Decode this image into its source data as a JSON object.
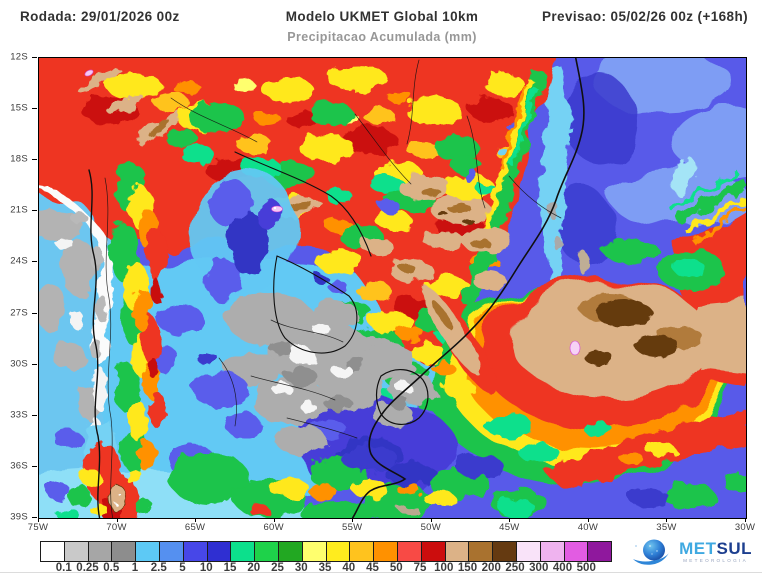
{
  "header": {
    "run_label": "Rodada: 29/01/2026 00z",
    "model_title": "Modelo UKMET Global 10km",
    "product_subtitle": "Precipitacao Acumulada (mm)",
    "forecast_label": "Previsao: 05/02/26 00z (+168h)"
  },
  "map_axes": {
    "lat_labels": [
      "12S",
      "15S",
      "18S",
      "21S",
      "24S",
      "27S",
      "30S",
      "33S",
      "36S",
      "39S"
    ],
    "lon_labels": [
      "75W",
      "70W",
      "65W",
      "60W",
      "55W",
      "50W",
      "45W",
      "40W",
      "35W",
      "30W"
    ]
  },
  "legend": {
    "labels": [
      "0.1",
      "0.25",
      "0.5",
      "1",
      "2.5",
      "5",
      "10",
      "15",
      "20",
      "25",
      "30",
      "35",
      "40",
      "45",
      "50",
      "75",
      "100",
      "150",
      "200",
      "250",
      "300",
      "400",
      "500"
    ],
    "colors": [
      "#ffffff",
      "#c9c9c9",
      "#a6a6a6",
      "#8d8d8d",
      "#5dc9f5",
      "#5590f0",
      "#4747e8",
      "#2f2fd2",
      "#0ce08c",
      "#1ed24a",
      "#22a822",
      "#ffff6e",
      "#ffec1e",
      "#ffc31e",
      "#ff9100",
      "#f84a45",
      "#cc0d0d",
      "#dcb287",
      "#a9722f",
      "#653a11",
      "#f9e3f9",
      "#efb3ef",
      "#e25ce2",
      "#8f189d"
    ]
  },
  "branding": {
    "brand_first": "MET",
    "brand_second": "SUL",
    "tagline": "METEOROLOGIA"
  }
}
